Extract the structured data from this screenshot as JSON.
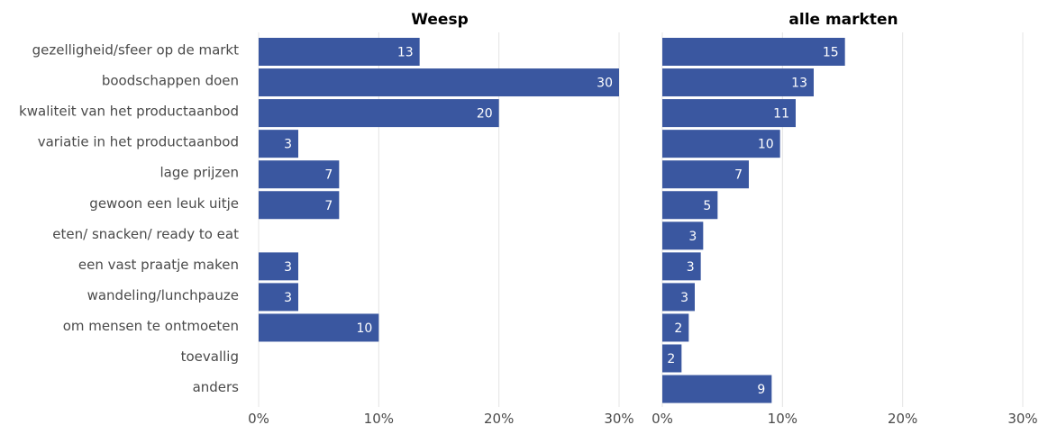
{
  "chart_data": {
    "type": "bar",
    "orientation": "horizontal",
    "categories": [
      "gezelligheid/sfeer op de markt",
      "boodschappen doen",
      "kwaliteit van het productaanbod",
      "variatie in het productaanbod",
      "lage prijzen",
      "gewoon een leuk uitje",
      "eten/ snacken/ ready to eat",
      "een vast praatje maken",
      "wandeling/lunchpauze",
      "om mensen te ontmoeten",
      "toevallig",
      "anders"
    ],
    "panels": [
      {
        "title": "Weesp",
        "values": [
          13.4,
          30,
          20,
          3.3,
          6.7,
          6.7,
          null,
          3.3,
          3.3,
          10,
          null,
          null
        ],
        "labels": [
          "13",
          "30",
          "20",
          "3",
          "7",
          "7",
          "",
          "3",
          "3",
          "10",
          "",
          ""
        ]
      },
      {
        "title": "alle markten",
        "values": [
          15.2,
          12.6,
          11.1,
          9.8,
          7.2,
          4.6,
          3.4,
          3.2,
          2.7,
          2.2,
          1.6,
          9.1
        ],
        "labels": [
          "15",
          "13",
          "11",
          "10",
          "7",
          "5",
          "3",
          "3",
          "3",
          "2",
          "2",
          "9"
        ]
      }
    ],
    "xticks": [
      "0%",
      "10%",
      "20%",
      "30%"
    ],
    "xlim": [
      0,
      30
    ],
    "grid": true,
    "bar_color": "#3a57a0"
  }
}
